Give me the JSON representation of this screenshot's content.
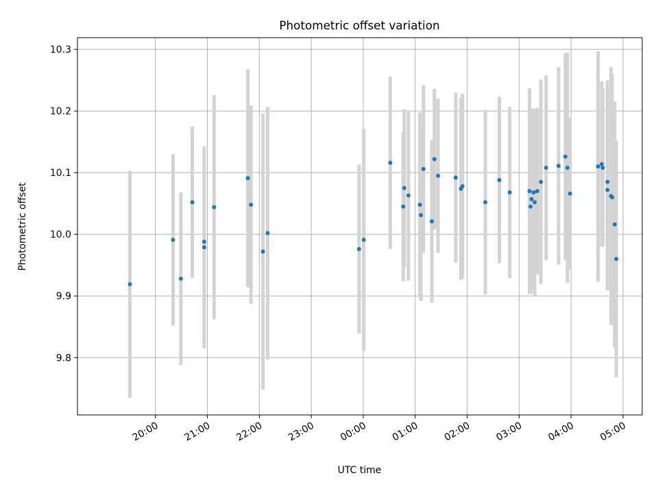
{
  "chart_data": {
    "type": "scatter",
    "title": "Photometric offset variation",
    "xlabel": "UTC time",
    "ylabel": "Photometric offset",
    "x_unit": "UTC time (hours after 00:00; negative = previous day)",
    "xlim": [
      -5.5,
      5.37
    ],
    "ylim": [
      9.707,
      10.319
    ],
    "grid": true,
    "colors": {
      "point": "#1f77b4",
      "errorbar": "#d3d3d3",
      "grid": "#b0b0b0"
    },
    "x_ticks": [
      {
        "value": -4,
        "label": "20:00"
      },
      {
        "value": -3,
        "label": "21:00"
      },
      {
        "value": -2,
        "label": "22:00"
      },
      {
        "value": -1,
        "label": "23:00"
      },
      {
        "value": 0,
        "label": "00:00"
      },
      {
        "value": 1,
        "label": "01:00"
      },
      {
        "value": 2,
        "label": "02:00"
      },
      {
        "value": 3,
        "label": "03:00"
      },
      {
        "value": 4,
        "label": "04:00"
      },
      {
        "value": 5,
        "label": "05:00"
      }
    ],
    "y_ticks": [
      {
        "value": 9.8,
        "label": "9.8"
      },
      {
        "value": 9.9,
        "label": "9.9"
      },
      {
        "value": 10.0,
        "label": "10.0"
      },
      {
        "value": 10.1,
        "label": "10.1"
      },
      {
        "value": 10.2,
        "label": "10.2"
      },
      {
        "value": 10.3,
        "label": "10.3"
      }
    ],
    "points": [
      {
        "x": -4.49,
        "y": 9.919,
        "err": 0.184
      },
      {
        "x": -3.66,
        "y": 9.991,
        "err": 0.139
      },
      {
        "x": -3.51,
        "y": 9.928,
        "err": 0.14
      },
      {
        "x": -3.29,
        "y": 10.052,
        "err": 0.123
      },
      {
        "x": -3.06,
        "y": 9.979,
        "err": 0.164
      },
      {
        "x": -3.06,
        "y": 9.988,
        "err": 0.155
      },
      {
        "x": -2.87,
        "y": 10.044,
        "err": 0.182
      },
      {
        "x": -2.22,
        "y": 10.091,
        "err": 0.177
      },
      {
        "x": -2.16,
        "y": 10.048,
        "err": 0.161
      },
      {
        "x": -1.93,
        "y": 9.972,
        "err": 0.224
      },
      {
        "x": -1.84,
        "y": 10.002,
        "err": 0.205
      },
      {
        "x": -0.08,
        "y": 9.976,
        "err": 0.137
      },
      {
        "x": 0.01,
        "y": 9.991,
        "err": 0.18
      },
      {
        "x": 0.52,
        "y": 10.116,
        "err": 0.14
      },
      {
        "x": 0.77,
        "y": 10.045,
        "err": 0.121
      },
      {
        "x": 0.79,
        "y": 10.075,
        "err": 0.128
      },
      {
        "x": 0.87,
        "y": 10.063,
        "err": 0.138
      },
      {
        "x": 1.09,
        "y": 10.048,
        "err": 0.15
      },
      {
        "x": 1.11,
        "y": 10.031,
        "err": 0.139
      },
      {
        "x": 1.16,
        "y": 10.106,
        "err": 0.136
      },
      {
        "x": 1.32,
        "y": 10.021,
        "err": 0.132
      },
      {
        "x": 1.37,
        "y": 10.122,
        "err": 0.114
      },
      {
        "x": 1.44,
        "y": 10.095,
        "err": 0.125
      },
      {
        "x": 1.78,
        "y": 10.092,
        "err": 0.138
      },
      {
        "x": 1.88,
        "y": 10.074,
        "err": 0.148
      },
      {
        "x": 1.91,
        "y": 10.078,
        "err": 0.15
      },
      {
        "x": 2.35,
        "y": 10.052,
        "err": 0.15
      },
      {
        "x": 2.62,
        "y": 10.088,
        "err": 0.135
      },
      {
        "x": 2.82,
        "y": 10.068,
        "err": 0.139
      },
      {
        "x": 3.2,
        "y": 10.07,
        "err": 0.167
      },
      {
        "x": 3.22,
        "y": 10.045,
        "err": 0.142
      },
      {
        "x": 3.24,
        "y": 10.057,
        "err": 0.147
      },
      {
        "x": 3.28,
        "y": 10.068,
        "err": 0.13
      },
      {
        "x": 3.3,
        "y": 10.052,
        "err": 0.152
      },
      {
        "x": 3.35,
        "y": 10.07,
        "err": 0.135
      },
      {
        "x": 3.42,
        "y": 10.085,
        "err": 0.166
      },
      {
        "x": 3.52,
        "y": 10.108,
        "err": 0.15
      },
      {
        "x": 3.76,
        "y": 10.111,
        "err": 0.16
      },
      {
        "x": 3.89,
        "y": 10.126,
        "err": 0.168
      },
      {
        "x": 3.93,
        "y": 10.108,
        "err": 0.187
      },
      {
        "x": 3.98,
        "y": 10.066,
        "err": 0.123
      },
      {
        "x": 4.52,
        "y": 10.11,
        "err": 0.187
      },
      {
        "x": 4.59,
        "y": 10.114,
        "err": 0.134
      },
      {
        "x": 4.61,
        "y": 10.108,
        "err": 0.128
      },
      {
        "x": 4.7,
        "y": 10.085,
        "err": 0.165
      },
      {
        "x": 4.7,
        "y": 10.072,
        "err": 0.163
      },
      {
        "x": 4.77,
        "y": 10.062,
        "err": 0.209
      },
      {
        "x": 4.79,
        "y": 10.06,
        "err": 0.2
      },
      {
        "x": 4.84,
        "y": 10.016,
        "err": 0.199
      },
      {
        "x": 4.87,
        "y": 9.96,
        "err": 0.192
      }
    ]
  }
}
